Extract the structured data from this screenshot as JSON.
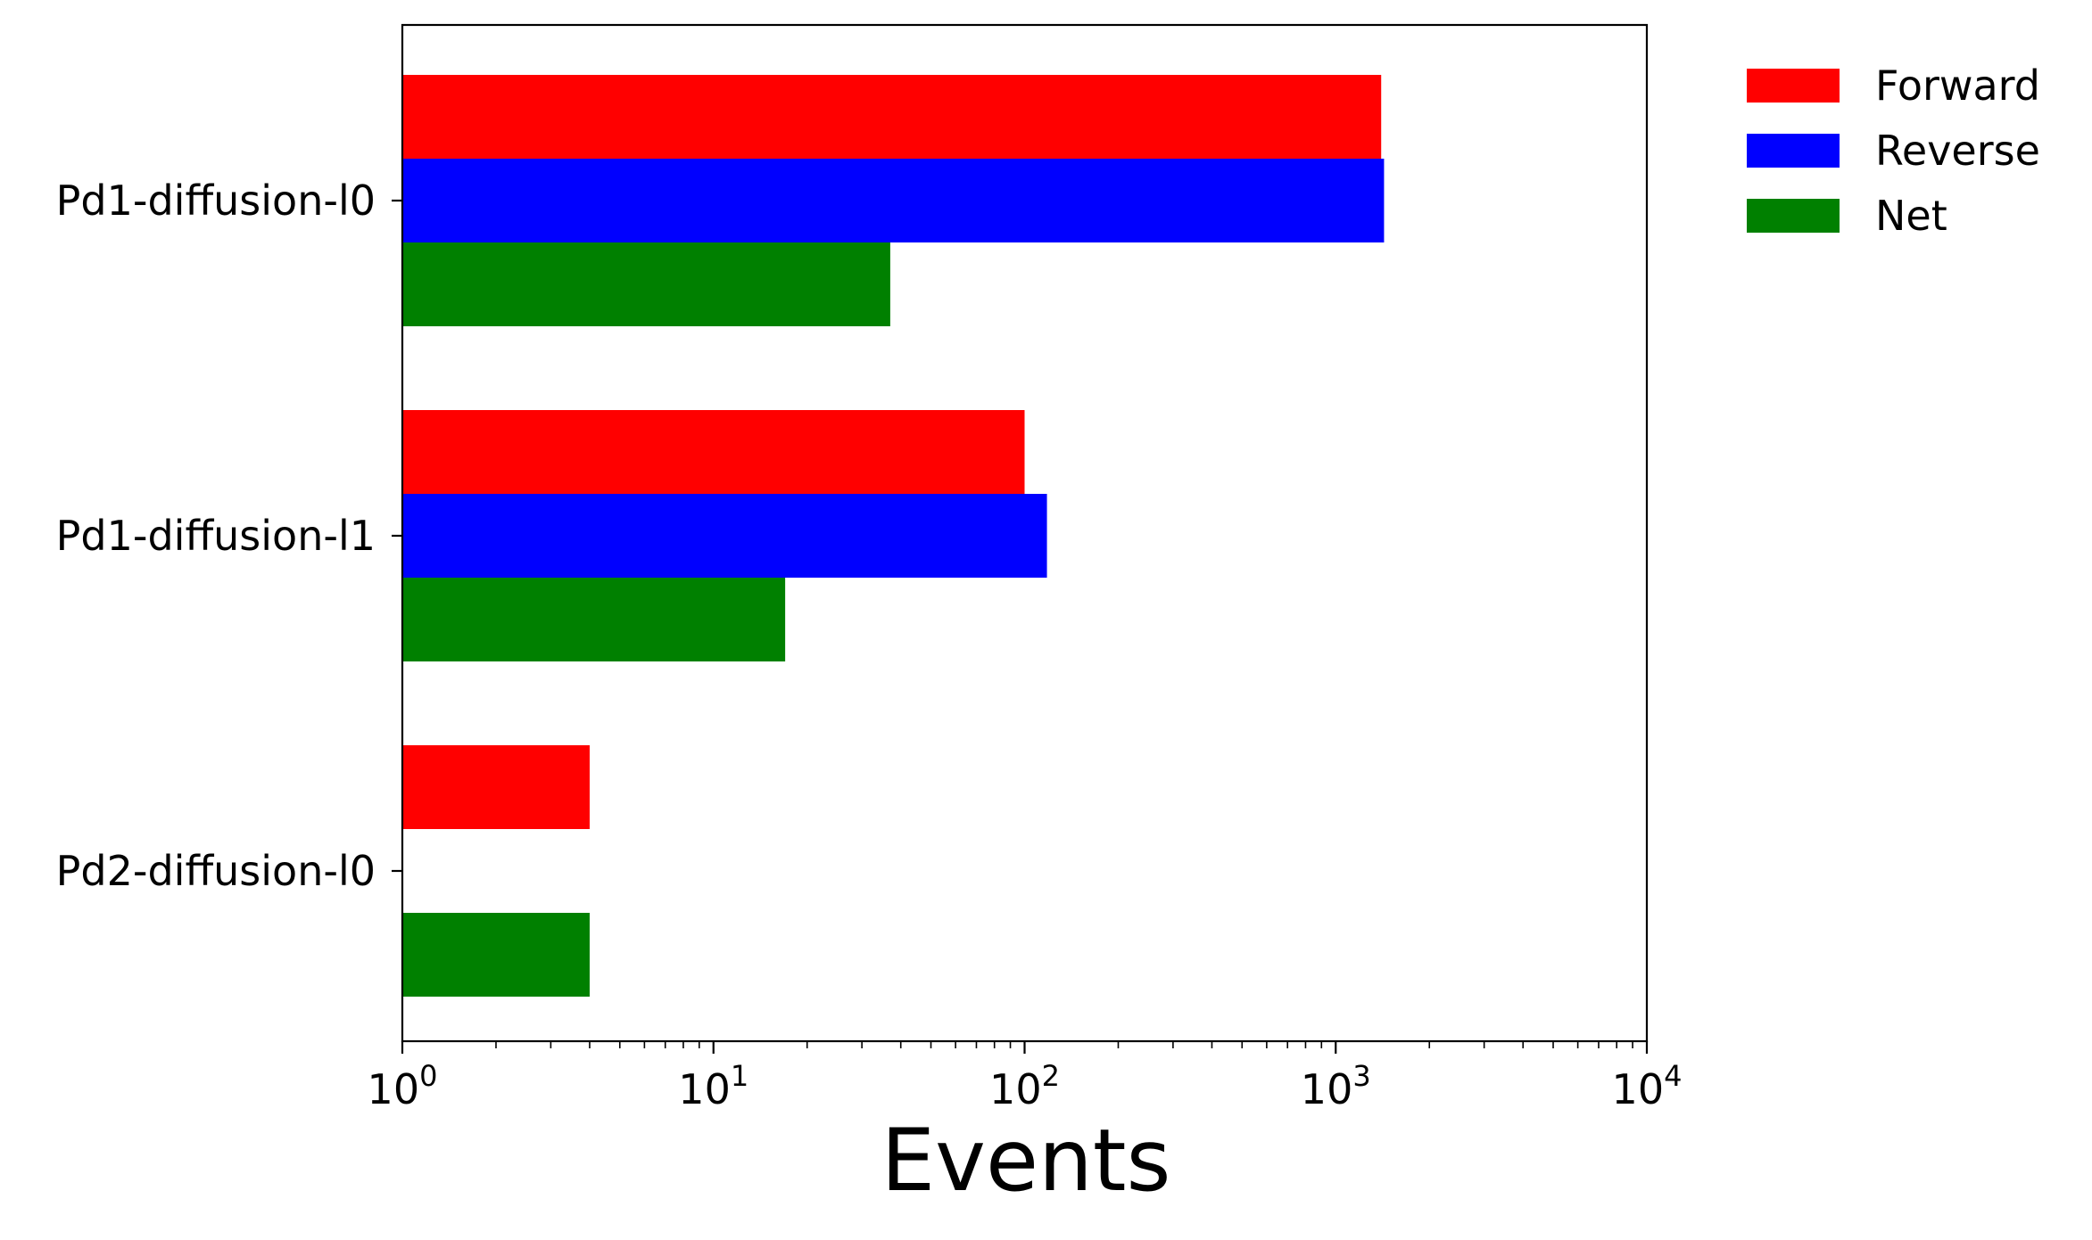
{
  "chart_data": {
    "type": "bar",
    "orientation": "horizontal",
    "title": "",
    "xlabel": "Events",
    "ylabel": "",
    "xscale": "log",
    "xlim": [
      1,
      10000
    ],
    "x_ticks": [
      {
        "value": 1,
        "base": "10",
        "exp": "0"
      },
      {
        "value": 10,
        "base": "10",
        "exp": "1"
      },
      {
        "value": 100,
        "base": "10",
        "exp": "2"
      },
      {
        "value": 1000,
        "base": "10",
        "exp": "3"
      },
      {
        "value": 10000,
        "base": "10",
        "exp": "4"
      }
    ],
    "categories": [
      "Pd1-diffusion-l0",
      "Pd1-diffusion-l1",
      "Pd2-diffusion-l0"
    ],
    "series": [
      {
        "name": "Forward",
        "color": "#ff0000",
        "values": [
          1400,
          100,
          4
        ]
      },
      {
        "name": "Reverse",
        "color": "#0000ff",
        "values": [
          1430,
          118,
          null
        ]
      },
      {
        "name": "Net",
        "color": "#008000",
        "values": [
          37,
          17,
          4
        ]
      }
    ],
    "grid": false,
    "legend": {
      "placement": "outside-top-right"
    }
  }
}
